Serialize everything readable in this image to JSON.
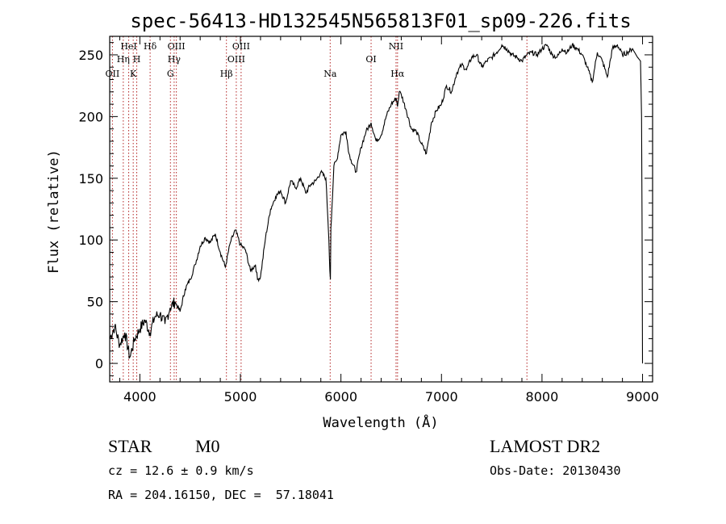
{
  "chart_data": {
    "type": "line",
    "title": "spec-56413-HD132545N565813F01_sp09-226.fits",
    "xlabel": "Wavelength (Å)",
    "ylabel": "Flux (relative)",
    "xlim": [
      3700,
      9100
    ],
    "ylim": [
      -15,
      265
    ],
    "x_ticks": [
      4000,
      5000,
      6000,
      7000,
      8000,
      9000
    ],
    "y_ticks": [
      0,
      50,
      100,
      150,
      200,
      250
    ],
    "grid": false,
    "series": [
      {
        "x": [
          3700,
          3750,
          3800,
          3850,
          3900,
          3950,
          4000,
          4050,
          4100,
          4150,
          4200,
          4250,
          4300,
          4350,
          4400,
          4450,
          4500,
          4550,
          4600,
          4650,
          4700,
          4750,
          4800,
          4850,
          4900,
          4950,
          5000,
          5050,
          5100,
          5150,
          5170,
          5200,
          5250,
          5300,
          5350,
          5400,
          5450,
          5500,
          5550,
          5600,
          5650,
          5700,
          5750,
          5800,
          5850,
          5870,
          5880,
          5890,
          5895,
          5900,
          5910,
          5930,
          5960,
          6000,
          6050,
          6080,
          6100,
          6150,
          6200,
          6250,
          6300,
          6350,
          6400,
          6450,
          6500,
          6550,
          6563,
          6580,
          6600,
          6650,
          6700,
          6750,
          6800,
          6850,
          6900,
          6950,
          7000,
          7050,
          7100,
          7150,
          7200,
          7250,
          7300,
          7350,
          7400,
          7450,
          7500,
          7550,
          7600,
          7650,
          7700,
          7750,
          7800,
          7850,
          7900,
          7950,
          8000,
          8050,
          8100,
          8150,
          8200,
          8250,
          8300,
          8350,
          8400,
          8450,
          8500,
          8550,
          8600,
          8650,
          8700,
          8750,
          8800,
          8850,
          8900,
          8950,
          8980,
          8990,
          8995,
          9000
        ],
        "values": [
          20,
          30,
          15,
          25,
          5,
          20,
          28,
          35,
          25,
          38,
          40,
          32,
          45,
          50,
          42,
          60,
          68,
          80,
          95,
          102,
          98,
          105,
          90,
          78,
          98,
          108,
          96,
          92,
          75,
          80,
          68,
          70,
          102,
          125,
          135,
          140,
          130,
          148,
          142,
          150,
          138,
          145,
          148,
          155,
          150,
          118,
          100,
          75,
          68,
          110,
          125,
          160,
          165,
          185,
          188,
          170,
          165,
          155,
          175,
          188,
          195,
          180,
          185,
          200,
          210,
          215,
          208,
          220,
          218,
          205,
          190,
          188,
          178,
          170,
          195,
          205,
          210,
          225,
          220,
          235,
          242,
          238,
          248,
          250,
          240,
          245,
          248,
          252,
          258,
          255,
          250,
          248,
          245,
          250,
          252,
          250,
          255,
          258,
          250,
          248,
          255,
          252,
          258,
          255,
          250,
          240,
          228,
          252,
          245,
          232,
          255,
          258,
          250,
          252,
          255,
          248,
          245,
          200,
          120,
          0
        ]
      }
    ],
    "line_markers": [
      {
        "x": 3727,
        "label": "OII",
        "row": 3
      },
      {
        "x": 3835,
        "label": "Hη",
        "row": 2
      },
      {
        "x": 3889,
        "label": "HeI",
        "row": 1
      },
      {
        "x": 3934,
        "label": "K",
        "row": 3
      },
      {
        "x": 3969,
        "label": "H",
        "row": 2
      },
      {
        "x": 4102,
        "label": "Hδ",
        "row": 1
      },
      {
        "x": 4304,
        "label": "G",
        "row": 3
      },
      {
        "x": 4341,
        "label": "Hγ",
        "row": 2
      },
      {
        "x": 4363,
        "label": "OIII",
        "row": 1
      },
      {
        "x": 4861,
        "label": "Hβ",
        "row": 3
      },
      {
        "x": 4959,
        "label": "OIII",
        "row": 2
      },
      {
        "x": 5007,
        "label": "OIII",
        "row": 1
      },
      {
        "x": 5893,
        "label": "Na",
        "row": 3
      },
      {
        "x": 6300,
        "label": "OI",
        "row": 2
      },
      {
        "x": 6548,
        "label": "NII",
        "row": 1
      },
      {
        "x": 6563,
        "label": "Hα",
        "row": 3
      },
      {
        "x": 7850,
        "label": "",
        "row": 0
      }
    ],
    "marker_color": "#b22222",
    "line_color": "#000000"
  },
  "info": {
    "object_class": "STAR",
    "subclass": "M0",
    "cz": "cz = 12.6 ± 0.9 km/s",
    "coords": "RA = 204.16150, DEC =  57.18041",
    "survey": "LAMOST DR2",
    "obs_date": "Obs-Date: 20130430"
  }
}
